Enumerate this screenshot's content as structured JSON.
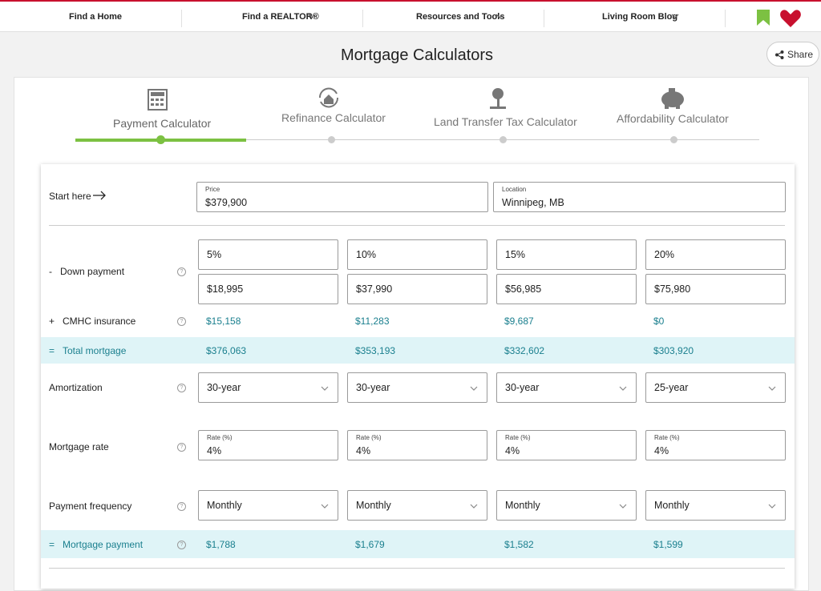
{
  "nav": {
    "items": [
      "Find a Home",
      "Find a REALTOR®",
      "Resources and Tools",
      "Living Room Blog"
    ]
  },
  "header": {
    "title": "Mortgage Calculators",
    "share": "Share"
  },
  "tabs": [
    "Payment Calculator",
    "Refinance Calculator",
    "Land Transfer Tax Calculator",
    "Affordability Calculator"
  ],
  "form": {
    "start_label": "Start here",
    "price": {
      "label": "Price",
      "value": "$379,900"
    },
    "location": {
      "label": "Location",
      "value": "Winnipeg, MB"
    },
    "down_payment": {
      "sign": "-",
      "label": "Down payment",
      "percents": [
        "5%",
        "10%",
        "15%",
        "20%"
      ],
      "amounts": [
        "$18,995",
        "$37,990",
        "$56,985",
        "$75,980"
      ]
    },
    "cmhc": {
      "sign": "+",
      "label": "CMHC insurance",
      "values": [
        "$15,158",
        "$11,283",
        "$9,687",
        "$0"
      ]
    },
    "total": {
      "sign": "=",
      "label": "Total mortgage",
      "values": [
        "$376,063",
        "$353,193",
        "$332,602",
        "$303,920"
      ]
    },
    "amortization": {
      "label": "Amortization",
      "values": [
        "30-year",
        "30-year",
        "30-year",
        "25-year"
      ]
    },
    "rate": {
      "label": "Mortgage rate",
      "field_label": "Rate (%)",
      "values": [
        "4%",
        "4%",
        "4%",
        "4%"
      ]
    },
    "frequency": {
      "label": "Payment frequency",
      "values": [
        "Monthly",
        "Monthly",
        "Monthly",
        "Monthly"
      ]
    },
    "payment": {
      "sign": "=",
      "label": "Mortgage payment",
      "values": [
        "$1,788",
        "$1,679",
        "$1,582",
        "$1,599"
      ]
    }
  }
}
